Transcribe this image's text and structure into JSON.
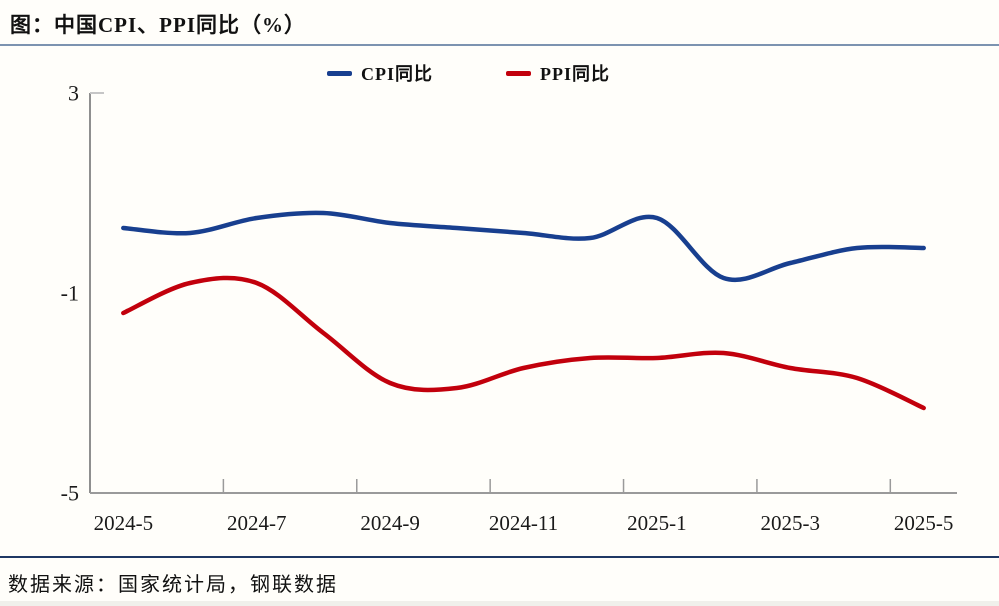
{
  "header": {
    "title": "图：中国CPI、PPI同比（%）"
  },
  "legend": {
    "items": [
      {
        "label": "CPI同比",
        "color": "#183F8F"
      },
      {
        "label": "PPI同比",
        "color": "#C2000C"
      }
    ]
  },
  "source": {
    "text": "数据来源：国家统计局，钢联数据"
  },
  "chart_data": {
    "type": "line",
    "title": "图：中国CPI、PPI同比（%）",
    "unit": "%",
    "line_style": "smooth",
    "grid": false,
    "legend_position": "top-center",
    "categories": [
      "2024-5",
      "2024-6",
      "2024-7",
      "2024-8",
      "2024-9",
      "2024-10",
      "2024-11",
      "2024-12",
      "2025-1",
      "2025-2",
      "2025-3",
      "2025-4",
      "2025-5"
    ],
    "x_tick_labels": [
      "2024-5",
      "2024-7",
      "2024-9",
      "2024-11",
      "2025-1",
      "2025-3",
      "2025-5"
    ],
    "y_ticks": [
      3,
      -1,
      -5
    ],
    "y_tick_labels": [
      "3",
      "-1",
      "-5"
    ],
    "ylim": [
      -5,
      3
    ],
    "series": [
      {
        "name": "CPI同比",
        "color": "#183F8F",
        "values": [
          0.3,
          0.2,
          0.5,
          0.6,
          0.4,
          0.3,
          0.2,
          0.1,
          0.5,
          -0.7,
          -0.4,
          -0.1,
          -0.1
        ]
      },
      {
        "name": "PPI同比",
        "color": "#C2000C",
        "values": [
          -1.4,
          -0.8,
          -0.8,
          -1.8,
          -2.8,
          -2.9,
          -2.5,
          -2.3,
          -2.3,
          -2.2,
          -2.5,
          -2.7,
          -3.3
        ]
      }
    ]
  }
}
